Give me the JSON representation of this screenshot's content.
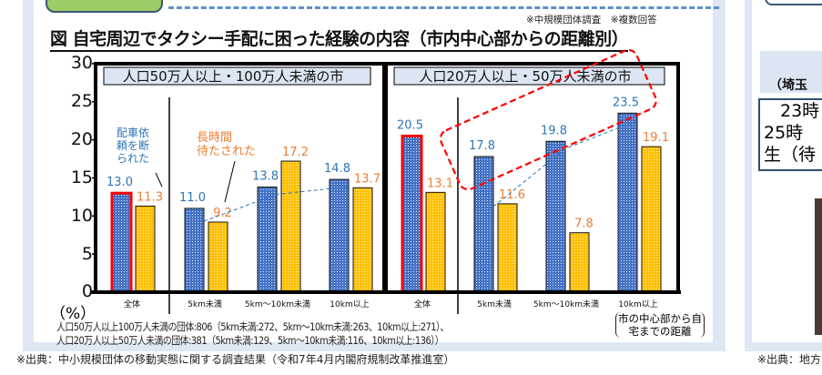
{
  "title": "図 自宅周辺でタクシー手配に困った経験の内容（市内中心部からの距離別）",
  "survey_note": "※中規模団体調査　※複数回答",
  "y_unit": "（%）",
  "x_axis_label": "市の中心部から自宅までの距離",
  "footnotes": [
    "人口50万人以上100万人未満の団体:806（5km未満:272、5km～10km未満:263、10km以上:271）、",
    "人口20万人以上50万人未満の団体:381（5km未満:129、5km～10km未満:116、10km以上:136））"
  ],
  "source": "※出典：中小規模団体の移動実態に関する調査結果（令和7年4月内閣府規制改革推進室）",
  "right_panel": {
    "header": "（埼玉",
    "lines": [
      "23時",
      "25時",
      "生（待"
    ],
    "source": "※出典：地方"
  },
  "colors": {
    "series1": "#4472c4",
    "series2": "#ffc000",
    "label1": "#2e75b6",
    "label2": "#ed7d31",
    "highlight": "#ff0000"
  },
  "chart_data": [
    {
      "type": "bar",
      "title": "人口50万人以上・100万人未満の市",
      "categories": [
        "全体",
        "5km未満",
        "5km～10km未満",
        "10km以上"
      ],
      "series": [
        {
          "name": "配車依頼を断られた",
          "values": [
            13.0,
            11.0,
            13.8,
            14.8
          ]
        },
        {
          "name": "長時間待たされた",
          "values": [
            11.3,
            9.2,
            17.2,
            13.7
          ]
        }
      ],
      "ylim": [
        0,
        30
      ],
      "yticks": [
        "0",
        "5",
        "10",
        "15",
        "20",
        "25",
        "30"
      ],
      "trendline": "series1 dashed over distance categories"
    },
    {
      "type": "bar",
      "title": "人口20万人以上・50万人未満の市",
      "categories": [
        "全体",
        "5km未満",
        "5km～10km未満",
        "10km以上"
      ],
      "series": [
        {
          "name": "配車依頼を断られた",
          "values": [
            20.5,
            17.8,
            19.8,
            23.5
          ]
        },
        {
          "name": "長時間待たされた",
          "values": [
            13.1,
            11.6,
            7.8,
            19.1
          ]
        }
      ],
      "ylim": [
        0,
        30
      ],
      "trendline": "series1 dashed over distance categories, highlighted with red dashed box"
    }
  ]
}
